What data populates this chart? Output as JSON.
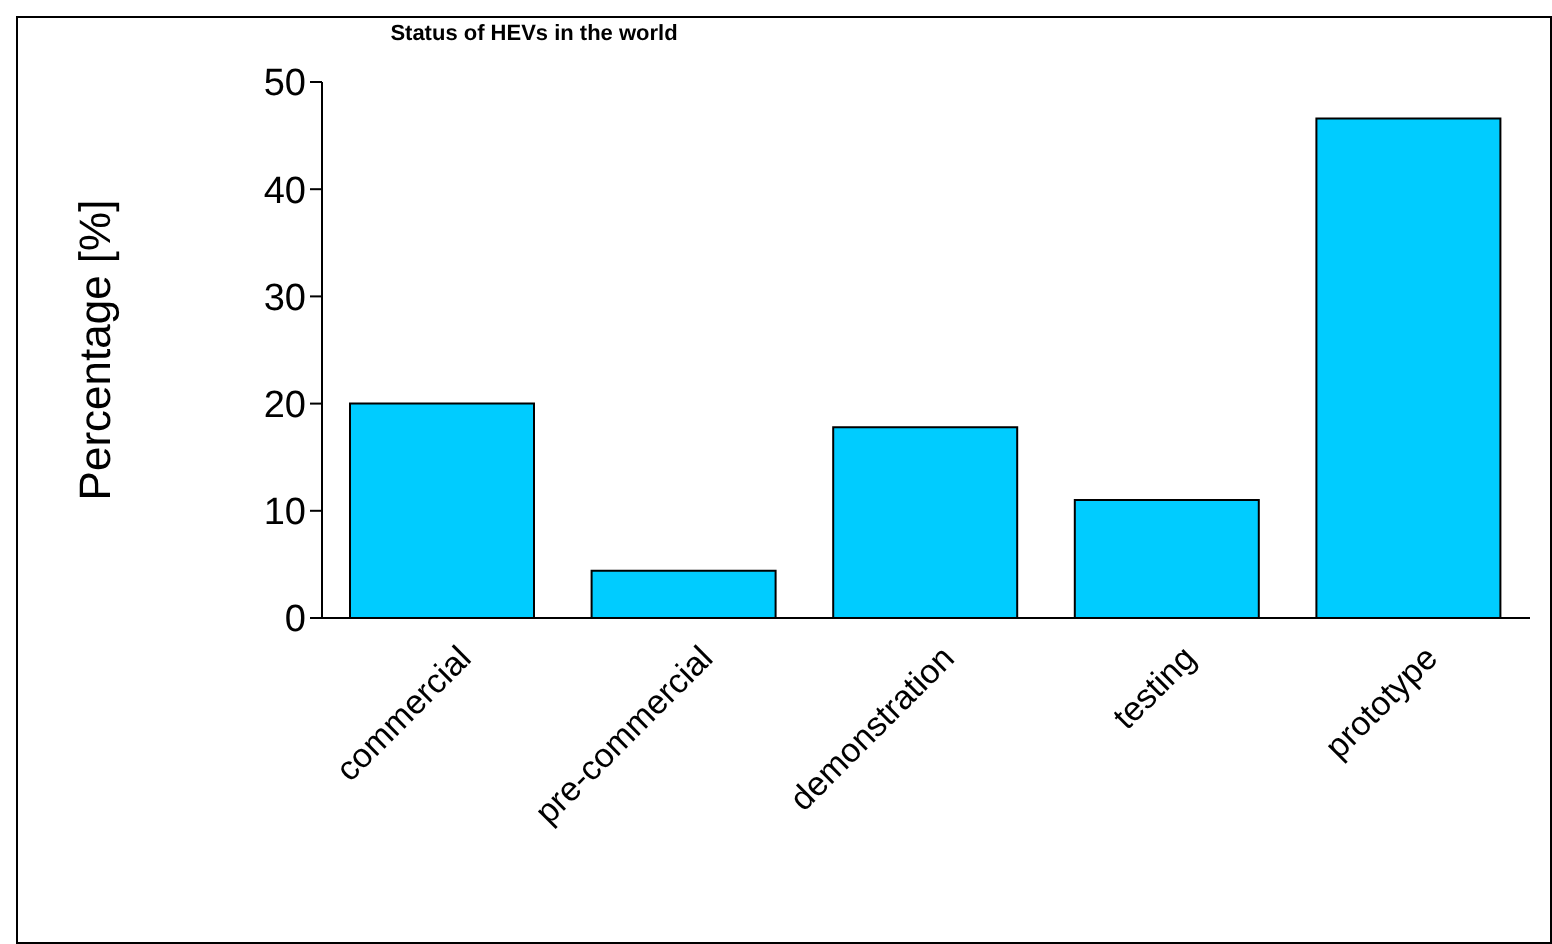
{
  "chart_data": {
    "type": "bar",
    "title": "Status of HEVs in the world",
    "ylabel": "Percentage [%]",
    "categories": [
      "commercial",
      "pre-commercial",
      "demonstration",
      "testing",
      "prototype"
    ],
    "values": [
      20,
      4.4,
      17.8,
      11,
      46.6
    ],
    "color": "#00ccff",
    "ylim": [
      0,
      50
    ],
    "yticks": [
      0,
      10,
      20,
      30,
      40,
      50
    ],
    "grid": false,
    "legend": false
  }
}
